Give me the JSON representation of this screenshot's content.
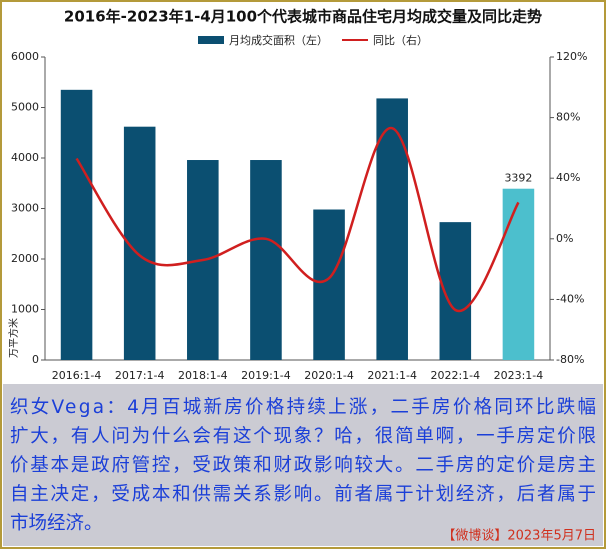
{
  "chart_data": {
    "type": "bar",
    "title": "2016年-2023年1-4月100个代表城市商品住宅月均成交量及同比走势",
    "y_label": "万平方米",
    "categories": [
      "2016:1-4",
      "2017:1-4",
      "2018:1-4",
      "2019:1-4",
      "2020:1-4",
      "2021:1-4",
      "2022:1-4",
      "2023:1-4"
    ],
    "series": [
      {
        "name": "月均成交面积（左）",
        "type": "bar",
        "color": "#0b4f71",
        "colors": [
          "#0b4f71",
          "#0b4f71",
          "#0b4f71",
          "#0b4f71",
          "#0b4f71",
          "#0b4f71",
          "#0b4f71",
          "#4cbfcd"
        ],
        "values": [
          5350,
          4620,
          3960,
          3960,
          2980,
          5180,
          2730,
          3392
        ],
        "value_labels": [
          null,
          null,
          null,
          null,
          null,
          null,
          null,
          "3392"
        ]
      },
      {
        "name": "同比（右）",
        "type": "line",
        "axis": "y2",
        "color": "#d01f1f",
        "values": [
          53,
          -11,
          -14,
          0,
          -26,
          73,
          -47,
          24
        ]
      }
    ],
    "ylim": [
      0,
      6000
    ],
    "yticks": [
      0,
      1000,
      2000,
      3000,
      4000,
      5000,
      6000
    ],
    "y2lim": [
      -80,
      120
    ],
    "y2ticks": [
      {
        "value": -80,
        "label": "-80%"
      },
      {
        "value": -40,
        "label": "-40%"
      },
      {
        "value": 0,
        "label": "0%"
      },
      {
        "value": 40,
        "label": "40%"
      },
      {
        "value": 80,
        "label": "80%"
      },
      {
        "value": 120,
        "label": "120%"
      }
    ],
    "grid": false
  },
  "commentary": {
    "lines": [
      "织女Vega：4月百城新房价格持续上涨，二手房价格同环比跌幅",
      "扩大，有人问为什么会有这个现象？哈，很简单啊，一手房定价限",
      "价基本是政府管控，受政策和财政影响较大。二手房的定价是房主",
      "自主决定，受成本和供需关系影响。前者属于计划经济，后者属于",
      "市场经济。"
    ],
    "footer": "【微博谈】2023年5月7日"
  }
}
